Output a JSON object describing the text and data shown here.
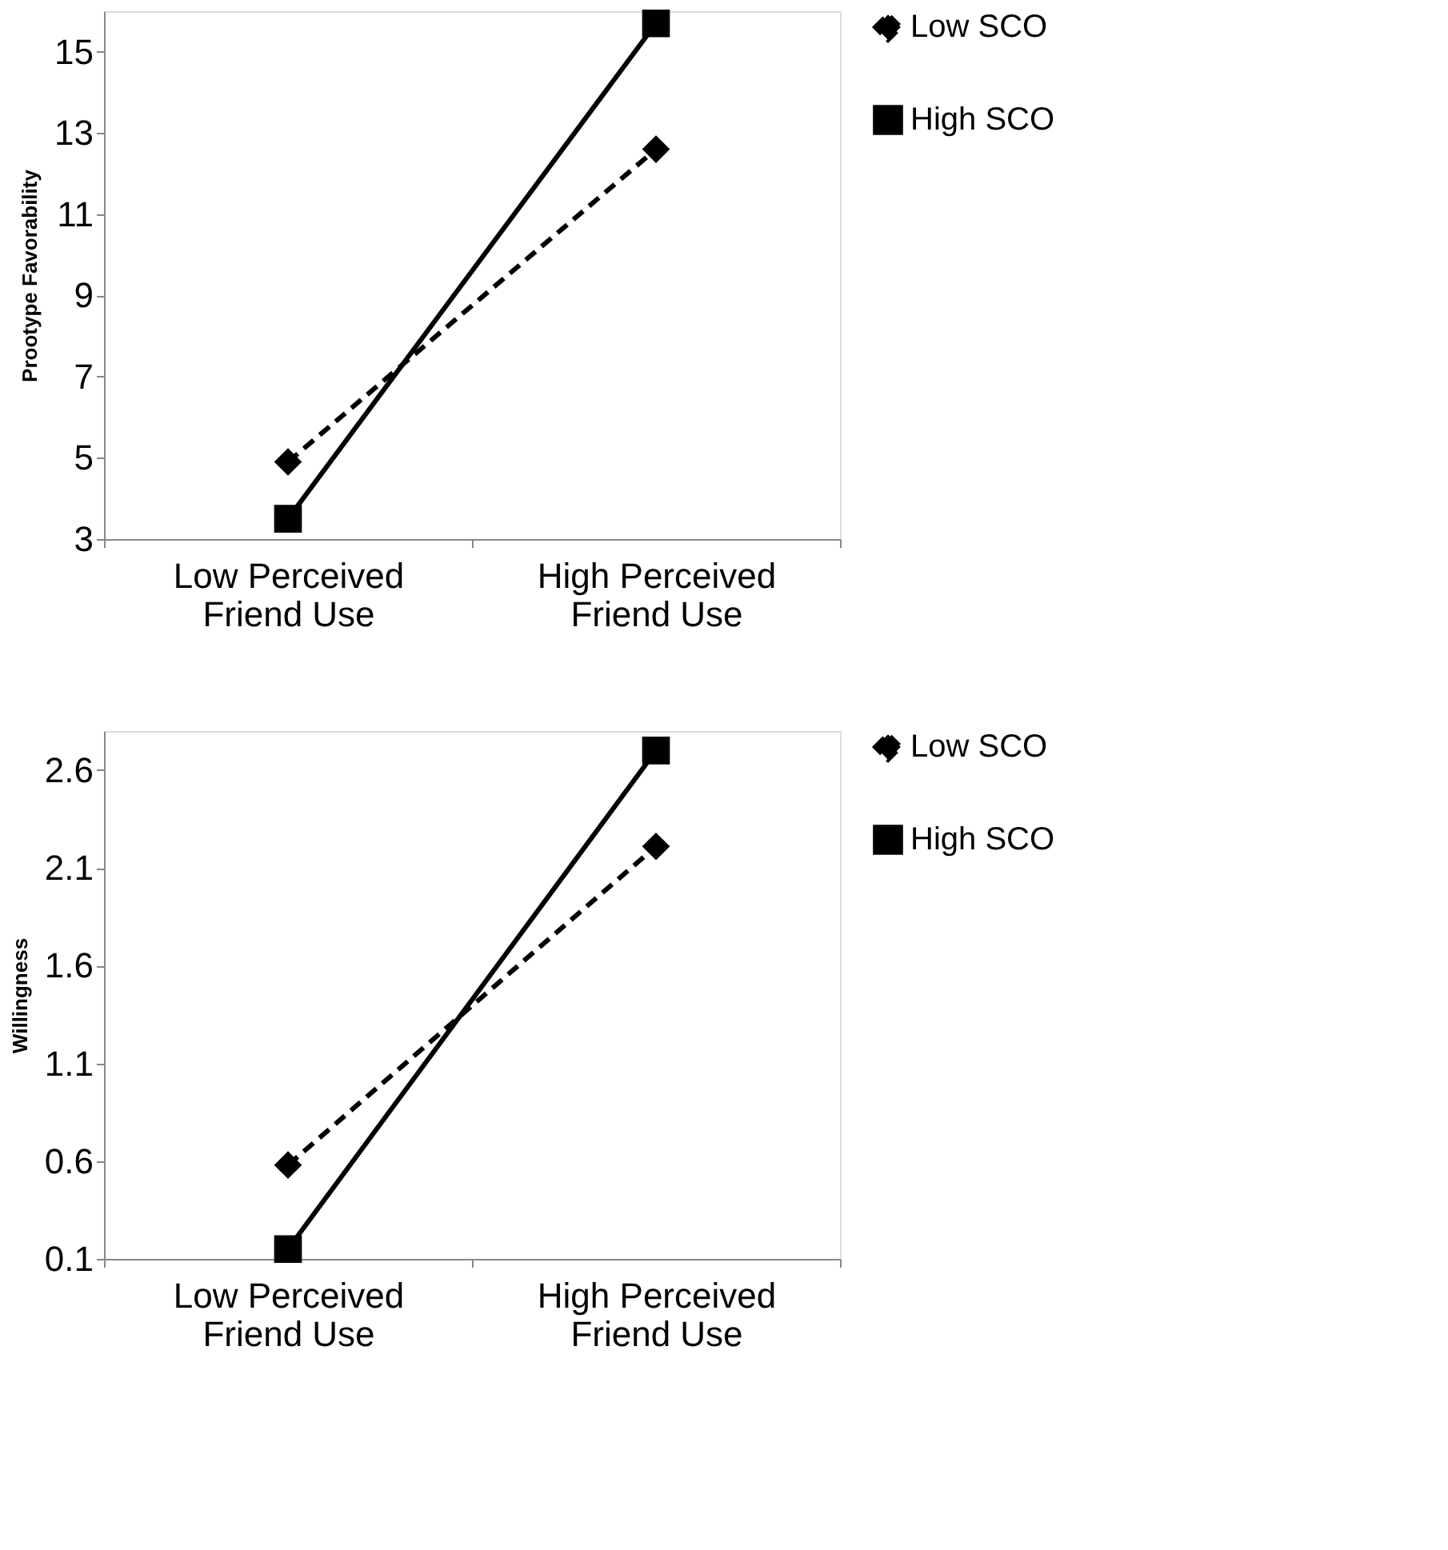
{
  "chart_data": [
    {
      "type": "line",
      "ylabel": "Prootype Favorability",
      "categories": [
        "Low Perceived\nFriend Use",
        "High Perceived\nFriend Use"
      ],
      "ylim": [
        3,
        16
      ],
      "yticks": [
        3,
        5,
        7,
        9,
        11,
        13,
        15
      ],
      "grid": false,
      "legend": "right",
      "series": [
        {
          "name": "Low  SCO",
          "color": "#000000",
          "values": [
            4.9,
            12.6
          ],
          "marker": "diamond",
          "line_style": "dashed"
        },
        {
          "name": "High SCO",
          "color": "#000000",
          "values": [
            3.5,
            15.7
          ],
          "marker": "square",
          "line_style": "solid"
        }
      ]
    },
    {
      "type": "line",
      "ylabel": "Willingness",
      "categories": [
        "Low Perceived\nFriend Use",
        "High Perceived\nFriend Use"
      ],
      "ylim": [
        0.1,
        2.8
      ],
      "yticks": [
        0.1,
        0.6,
        1.1,
        1.6,
        2.1,
        2.6
      ],
      "grid": false,
      "legend": "right",
      "series": [
        {
          "name": "Low  SCO",
          "color": "#000000",
          "values": [
            0.58,
            2.21
          ],
          "marker": "diamond",
          "line_style": "dashed"
        },
        {
          "name": "High SCO",
          "color": "#000000",
          "values": [
            0.15,
            2.7
          ],
          "marker": "square",
          "line_style": "solid"
        }
      ]
    }
  ]
}
